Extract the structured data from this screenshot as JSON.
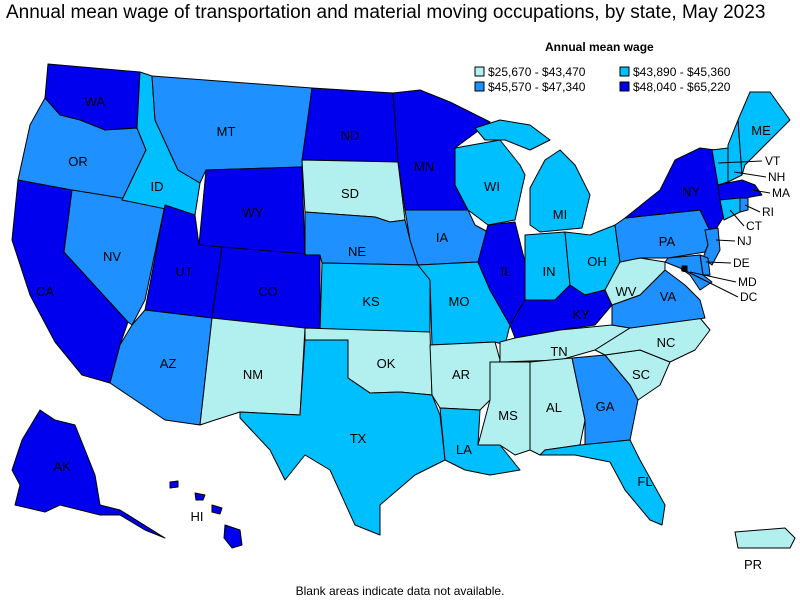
{
  "title": "Annual mean wage of transportation and material moving occupations, by state, May 2023",
  "footnote": "Blank areas indicate data not available.",
  "legend": {
    "title": "Annual mean wage",
    "ranges": [
      {
        "label": "$25,670 - $43,470",
        "color": "#b2f0f0"
      },
      {
        "label": "$43,890 - $45,360",
        "color": "#00bfff"
      },
      {
        "label": "$45,570 - $47,340",
        "color": "#1e90ff"
      },
      {
        "label": "$48,040 - $65,220",
        "color": "#0000ee"
      }
    ]
  },
  "states": [
    {
      "abbr": "WA",
      "range": 3
    },
    {
      "abbr": "OR",
      "range": 2
    },
    {
      "abbr": "CA",
      "range": 3
    },
    {
      "abbr": "NV",
      "range": 2
    },
    {
      "abbr": "ID",
      "range": 1
    },
    {
      "abbr": "MT",
      "range": 2
    },
    {
      "abbr": "WY",
      "range": 3
    },
    {
      "abbr": "UT",
      "range": 3
    },
    {
      "abbr": "CO",
      "range": 3
    },
    {
      "abbr": "AZ",
      "range": 2
    },
    {
      "abbr": "NM",
      "range": 0
    },
    {
      "abbr": "ND",
      "range": 3
    },
    {
      "abbr": "SD",
      "range": 0
    },
    {
      "abbr": "NE",
      "range": 2
    },
    {
      "abbr": "KS",
      "range": 1
    },
    {
      "abbr": "OK",
      "range": 0
    },
    {
      "abbr": "TX",
      "range": 1
    },
    {
      "abbr": "MN",
      "range": 3
    },
    {
      "abbr": "IA",
      "range": 2
    },
    {
      "abbr": "MO",
      "range": 1
    },
    {
      "abbr": "AR",
      "range": 0
    },
    {
      "abbr": "LA",
      "range": 1
    },
    {
      "abbr": "WI",
      "range": 1
    },
    {
      "abbr": "IL",
      "range": 3
    },
    {
      "abbr": "MI",
      "range": 1
    },
    {
      "abbr": "IN",
      "range": 1
    },
    {
      "abbr": "OH",
      "range": 1
    },
    {
      "abbr": "KY",
      "range": 3
    },
    {
      "abbr": "TN",
      "range": 0
    },
    {
      "abbr": "MS",
      "range": 0
    },
    {
      "abbr": "AL",
      "range": 0
    },
    {
      "abbr": "GA",
      "range": 2
    },
    {
      "abbr": "FL",
      "range": 1
    },
    {
      "abbr": "SC",
      "range": 0
    },
    {
      "abbr": "NC",
      "range": 0
    },
    {
      "abbr": "VA",
      "range": 2
    },
    {
      "abbr": "WV",
      "range": 0
    },
    {
      "abbr": "PA",
      "range": 2
    },
    {
      "abbr": "NY",
      "range": 3
    },
    {
      "abbr": "VT",
      "range": 1
    },
    {
      "abbr": "NH",
      "range": 1
    },
    {
      "abbr": "ME",
      "range": 1
    },
    {
      "abbr": "MA",
      "range": 3
    },
    {
      "abbr": "RI",
      "range": 2
    },
    {
      "abbr": "CT",
      "range": 1
    },
    {
      "abbr": "NJ",
      "range": 2
    },
    {
      "abbr": "DE",
      "range": 2
    },
    {
      "abbr": "MD",
      "range": 2
    },
    {
      "abbr": "DC",
      "range": 3
    },
    {
      "abbr": "AK",
      "range": 3
    },
    {
      "abbr": "HI",
      "range": 3
    },
    {
      "abbr": "PR",
      "range": 0
    }
  ]
}
